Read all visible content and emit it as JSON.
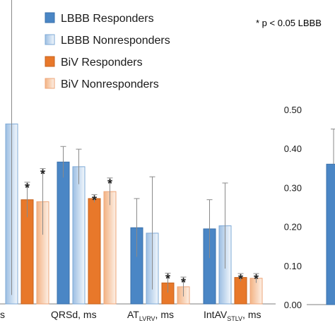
{
  "chart_data": [
    {
      "type": "bar",
      "legend": {
        "placement": "top",
        "entries": [
          {
            "name": "LBBB Responders",
            "color": "#4a86c5",
            "fill": "solid"
          },
          {
            "name": "LBBB Nonresponders",
            "color": "#cfe0f2",
            "fill": "gradient"
          },
          {
            "name": "BiV Responders",
            "color": "#e8782a",
            "fill": "solid"
          },
          {
            "name": "BiV Nonresponders",
            "color": "#f8cfb0",
            "fill": "gradient"
          }
        ]
      },
      "note": "* p < 0.05 LBBB",
      "categories": [
        {
          "prefix": "",
          "sub": "",
          "suffix": "s"
        },
        {
          "prefix": "QRSd, ms",
          "sub": "",
          "suffix": ""
        },
        {
          "prefix": "AT",
          "sub": "LVRV",
          "suffix": ", ms"
        },
        {
          "prefix": "IntAV",
          "sub": "STLV",
          "suffix": ", ms"
        }
      ],
      "bars": [
        [
          {
            "v": null,
            "err": null
          },
          {
            "v": 0.463,
            "err": 0.44
          },
          {
            "v": 0.268,
            "err": 0.045,
            "star": true
          },
          {
            "v": 0.263,
            "err": 0.085,
            "star": true
          }
        ],
        [
          {
            "v": 0.365,
            "err": 0.04
          },
          {
            "v": 0.353,
            "err": 0.045
          },
          {
            "v": 0.271,
            "err": 0.01,
            "star": true
          },
          {
            "v": 0.289,
            "err": 0.035,
            "star": true
          }
        ],
        [
          {
            "v": 0.196,
            "err": 0.075
          },
          {
            "v": 0.182,
            "err": 0.145
          },
          {
            "v": 0.054,
            "err": 0.025,
            "star": true
          },
          {
            "v": 0.044,
            "err": 0.025,
            "star": true
          }
        ],
        [
          {
            "v": 0.193,
            "err": 0.075
          },
          {
            "v": 0.201,
            "err": 0.11
          },
          {
            "v": 0.068,
            "err": 0.01,
            "star": true
          },
          {
            "v": 0.066,
            "err": 0.012,
            "star": true
          }
        ]
      ]
    },
    {
      "type": "bar",
      "ylim": [
        0,
        0.5
      ],
      "yticks": [
        "0.00",
        "0.10",
        "0.20",
        "0.30",
        "0.40",
        "0.50"
      ],
      "bars": [
        {
          "series": "LBBB Responders",
          "v": 0.36,
          "err": 0.09
        }
      ]
    }
  ]
}
